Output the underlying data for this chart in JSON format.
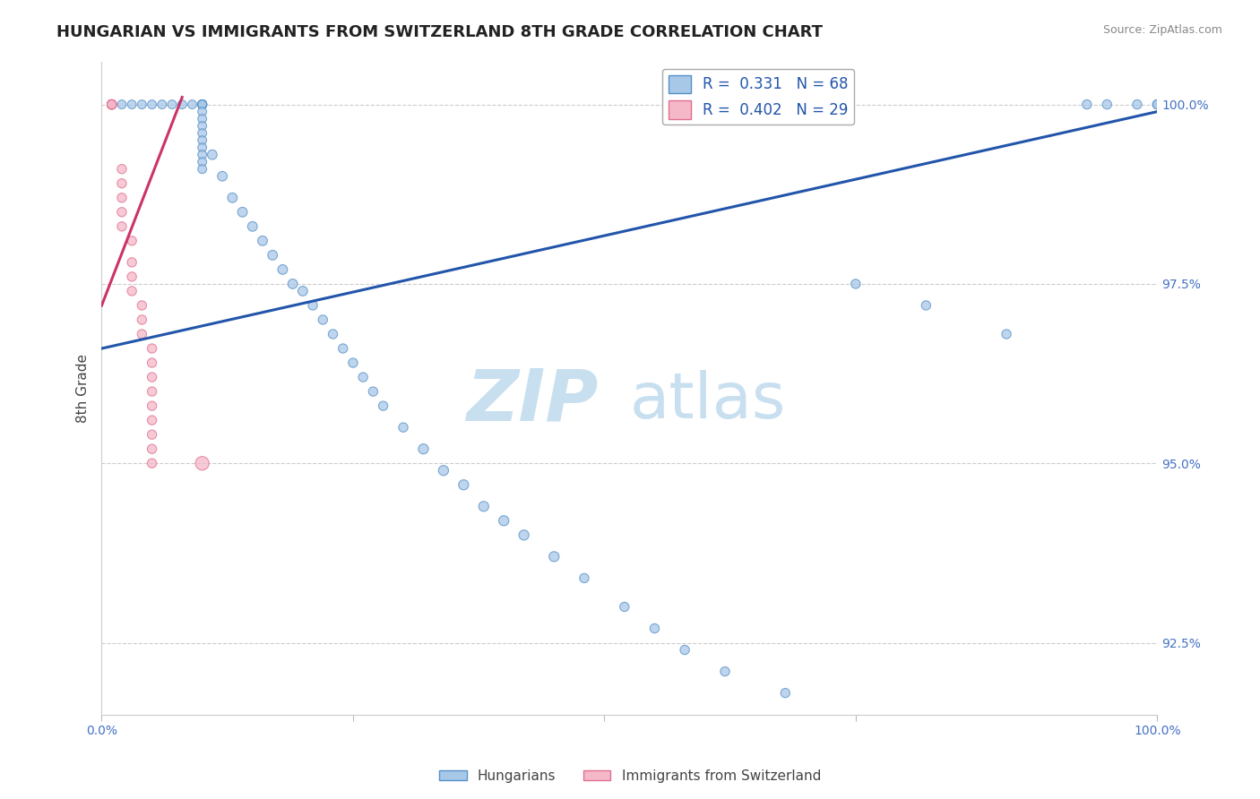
{
  "title": "HUNGARIAN VS IMMIGRANTS FROM SWITZERLAND 8TH GRADE CORRELATION CHART",
  "source": "Source: ZipAtlas.com",
  "ylabel": "8th Grade",
  "y_ticks_labels": [
    "92.5%",
    "95.0%",
    "97.5%",
    "100.0%"
  ],
  "y_ticks_values": [
    0.925,
    0.95,
    0.975,
    1.0
  ],
  "x_min": 0.0,
  "x_max": 0.105,
  "y_min": 0.915,
  "y_max": 1.006,
  "x_tick_positions": [
    0.0,
    0.025,
    0.05,
    0.075,
    0.105
  ],
  "x_tick_labels": [
    "0.0%",
    "",
    "",
    "",
    "100.0%"
  ],
  "legend_blue": "R =  0.331   N = 68",
  "legend_pink": "R =  0.402   N = 29",
  "blue_color": "#a8c8e8",
  "pink_color": "#f4b8c8",
  "blue_edge_color": "#5590c8",
  "pink_edge_color": "#e07090",
  "blue_line_color": "#2255aa",
  "pink_line_color": "#cc3366",
  "grid_color": "#cccccc",
  "watermark_zip": "ZIP",
  "watermark_atlas": "atlas",
  "watermark_color": "#c8dff0",
  "blue_scatter_x": [
    0.001,
    0.002,
    0.003,
    0.004,
    0.005,
    0.006,
    0.007,
    0.008,
    0.009,
    0.01,
    0.01,
    0.01,
    0.01,
    0.01,
    0.01,
    0.01,
    0.01,
    0.01,
    0.01,
    0.011,
    0.012,
    0.013,
    0.014,
    0.015,
    0.016,
    0.017,
    0.018,
    0.019,
    0.02,
    0.021,
    0.022,
    0.023,
    0.024,
    0.025,
    0.026,
    0.027,
    0.028,
    0.03,
    0.032,
    0.034,
    0.036,
    0.038,
    0.04,
    0.042,
    0.045,
    0.048,
    0.052,
    0.055,
    0.058,
    0.062,
    0.068,
    0.075,
    0.082,
    0.09,
    0.01,
    0.01,
    0.01,
    0.01,
    0.01,
    0.01,
    0.01,
    0.01,
    0.01,
    0.098,
    0.1,
    0.103,
    0.105,
    0.105
  ],
  "blue_scatter_y": [
    1.0,
    1.0,
    1.0,
    1.0,
    1.0,
    1.0,
    1.0,
    1.0,
    1.0,
    1.0,
    1.0,
    1.0,
    1.0,
    1.0,
    1.0,
    1.0,
    1.0,
    1.0,
    1.0,
    0.993,
    0.99,
    0.987,
    0.985,
    0.983,
    0.981,
    0.979,
    0.977,
    0.975,
    0.974,
    0.972,
    0.97,
    0.968,
    0.966,
    0.964,
    0.962,
    0.96,
    0.958,
    0.955,
    0.952,
    0.949,
    0.947,
    0.944,
    0.942,
    0.94,
    0.937,
    0.934,
    0.93,
    0.927,
    0.924,
    0.921,
    0.918,
    0.975,
    0.972,
    0.968,
    0.999,
    0.998,
    0.997,
    0.996,
    0.995,
    0.994,
    0.993,
    0.992,
    0.991,
    1.0,
    1.0,
    1.0,
    1.0,
    1.0
  ],
  "blue_scatter_size": [
    50,
    50,
    50,
    50,
    50,
    50,
    50,
    50,
    50,
    50,
    50,
    50,
    50,
    50,
    50,
    50,
    50,
    50,
    50,
    60,
    60,
    60,
    60,
    60,
    60,
    60,
    60,
    60,
    60,
    55,
    55,
    55,
    55,
    55,
    55,
    55,
    55,
    55,
    65,
    65,
    65,
    65,
    65,
    65,
    65,
    55,
    55,
    55,
    55,
    55,
    55,
    55,
    55,
    55,
    50,
    50,
    50,
    50,
    50,
    50,
    50,
    50,
    50,
    55,
    55,
    55,
    55,
    55
  ],
  "pink_scatter_x": [
    0.001,
    0.001,
    0.001,
    0.001,
    0.001,
    0.001,
    0.001,
    0.002,
    0.002,
    0.002,
    0.002,
    0.002,
    0.003,
    0.003,
    0.003,
    0.003,
    0.004,
    0.004,
    0.004,
    0.005,
    0.005,
    0.005,
    0.005,
    0.005,
    0.005,
    0.005,
    0.005,
    0.005,
    0.01
  ],
  "pink_scatter_y": [
    1.0,
    1.0,
    1.0,
    1.0,
    1.0,
    1.0,
    1.0,
    0.991,
    0.989,
    0.987,
    0.985,
    0.983,
    0.981,
    0.978,
    0.976,
    0.974,
    0.972,
    0.97,
    0.968,
    0.966,
    0.964,
    0.962,
    0.96,
    0.958,
    0.956,
    0.954,
    0.952,
    0.95,
    0.95
  ],
  "pink_scatter_size": [
    55,
    55,
    55,
    55,
    55,
    55,
    55,
    55,
    55,
    55,
    55,
    55,
    55,
    55,
    55,
    55,
    55,
    55,
    55,
    55,
    55,
    55,
    55,
    55,
    55,
    55,
    55,
    55,
    120
  ],
  "blue_trendline_x": [
    0.0,
    0.105
  ],
  "blue_trendline_y": [
    0.966,
    0.999
  ],
  "pink_trendline_x": [
    0.0,
    0.008
  ],
  "pink_trendline_y": [
    0.972,
    1.001
  ],
  "bottom_legend": [
    "Hungarians",
    "Immigrants from Switzerland"
  ]
}
